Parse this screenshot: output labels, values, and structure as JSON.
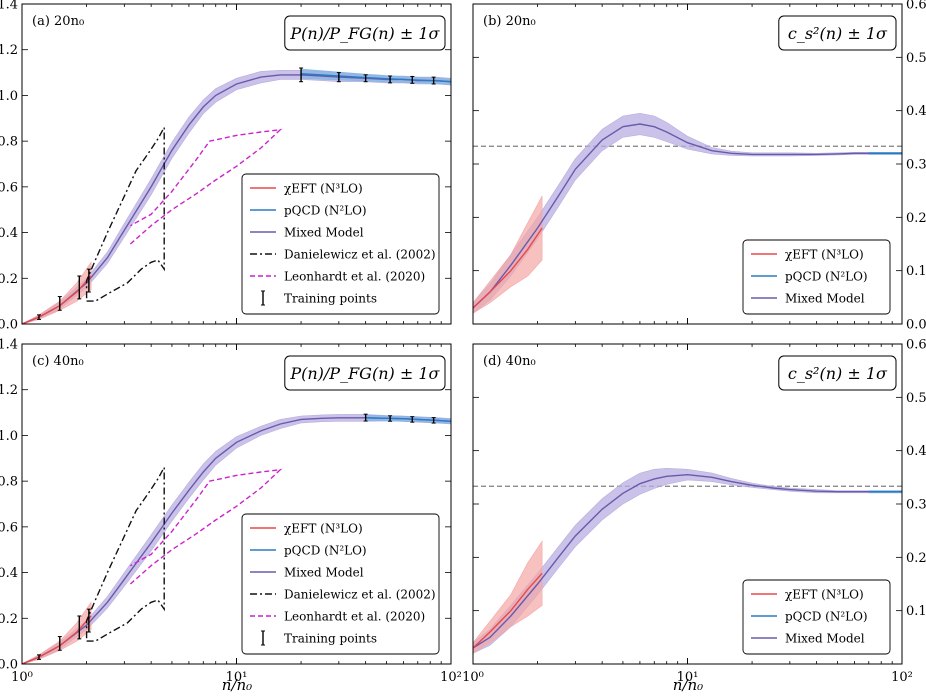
{
  "figure": {
    "xlabel": "n/n₀",
    "colors": {
      "chiEFT": "#e8484b",
      "pQCD": "#2b7bc4",
      "mixed": "#6a5aab",
      "mixed_band": "#b8aee0",
      "danielewicz": "#111111",
      "leonhardt": "#cc22cc",
      "conformal": "#7f7f7f"
    }
  },
  "chart_data": [
    {
      "id": "a",
      "type": "line",
      "panel_label": "(a) 20n₀",
      "title": "P(n)/P_FG(n) ± 1σ",
      "xscale": "log",
      "xlim": [
        1,
        100
      ],
      "ylim": [
        0,
        1.4
      ],
      "yticks": [
        0.0,
        0.2,
        0.4,
        0.6,
        0.8,
        1.0,
        1.2,
        1.4
      ],
      "ytick_labels": [
        "0.0",
        "0.2",
        "0.4",
        "0.6",
        "0.8",
        "1.0",
        "1.2",
        "1.4"
      ],
      "yaxis_side": "left",
      "legend_position": "lower-right",
      "legend": [
        "χEFT (N³LO)",
        "pQCD (N²LO)",
        "Mixed Model",
        "Danielewicz et al. (2002)",
        "Leonhardt et al. (2020)",
        "Training points"
      ],
      "series": [
        {
          "name": "Mixed Model",
          "x": [
            1.0,
            1.2,
            1.5,
            2.0,
            2.5,
            3.0,
            4.0,
            5.0,
            6.0,
            7.0,
            8.0,
            10.0,
            13.0,
            16.0,
            20.0,
            25.0,
            30.0,
            40.0,
            50.0,
            60.0,
            70.0,
            85.0,
            100.0
          ],
          "y": [
            0.0,
            0.03,
            0.08,
            0.18,
            0.29,
            0.41,
            0.6,
            0.76,
            0.87,
            0.95,
            1.0,
            1.05,
            1.08,
            1.09,
            1.09,
            1.085,
            1.08,
            1.075,
            1.07,
            1.07,
            1.065,
            1.065,
            1.06
          ],
          "band": [
            0.0,
            0.01,
            0.015,
            0.02,
            0.025,
            0.03,
            0.035,
            0.035,
            0.035,
            0.03,
            0.03,
            0.025,
            0.025,
            0.02,
            0.02,
            0.02,
            0.02,
            0.015,
            0.015,
            0.015,
            0.015,
            0.015,
            0.015
          ]
        },
        {
          "name": "χEFT (N³LO)",
          "x": [
            1.0,
            1.2,
            1.5,
            1.8,
            2.1
          ],
          "y": [
            0.0,
            0.03,
            0.08,
            0.14,
            0.21
          ],
          "band": [
            0.0,
            0.01,
            0.02,
            0.04,
            0.06
          ]
        },
        {
          "name": "pQCD (N²LO)",
          "x": [
            20.0,
            30.0,
            40.0,
            50.0,
            60.0,
            70.0,
            85.0,
            100.0
          ],
          "y": [
            1.095,
            1.085,
            1.078,
            1.073,
            1.07,
            1.067,
            1.064,
            1.06
          ],
          "band": [
            0.02,
            0.017,
            0.015,
            0.014,
            0.013,
            0.012,
            0.012,
            0.012
          ]
        },
        {
          "name": "Danielewicz et al. (2002)",
          "style": "dashdot",
          "x": [
            2.0,
            2.2,
            2.6,
            3.1,
            3.6,
            4.0,
            4.3,
            4.6,
            4.6,
            4.3,
            3.9,
            3.4,
            2.9,
            2.5,
            2.2,
            2.0,
            2.0
          ],
          "y": [
            0.1,
            0.1,
            0.14,
            0.18,
            0.24,
            0.27,
            0.28,
            0.24,
            0.86,
            0.81,
            0.75,
            0.67,
            0.53,
            0.4,
            0.28,
            0.19,
            0.1
          ]
        },
        {
          "name": "Leonhardt et al. (2020)",
          "style": "dashed",
          "x": [
            3.2,
            4.0,
            5.0,
            6.5,
            8.0,
            10.0,
            13.0,
            16.0,
            13.0,
            10.0,
            7.5,
            6.5,
            5.0,
            4.0,
            3.2
          ],
          "y": [
            0.35,
            0.43,
            0.5,
            0.57,
            0.63,
            0.69,
            0.77,
            0.85,
            0.84,
            0.825,
            0.8,
            0.72,
            0.58,
            0.48,
            0.43
          ]
        }
      ],
      "training_points": {
        "x": [
          1.2,
          1.5,
          1.85,
          2.05,
          20.0,
          30.0,
          40.0,
          52.0,
          66.0,
          83.0
        ],
        "y": [
          0.03,
          0.09,
          0.16,
          0.19,
          1.09,
          1.08,
          1.075,
          1.07,
          1.068,
          1.065
        ],
        "err": [
          0.01,
          0.03,
          0.05,
          0.05,
          0.03,
          0.02,
          0.015,
          0.015,
          0.015,
          0.015
        ]
      }
    },
    {
      "id": "b",
      "type": "line",
      "panel_label": "(b) 20n₀",
      "title": "c_s²(n) ± 1σ",
      "xscale": "log",
      "xlim": [
        1,
        100
      ],
      "ylim": [
        0,
        0.6
      ],
      "yticks": [
        0.0,
        0.1,
        0.2,
        0.3,
        0.4,
        0.5,
        0.6
      ],
      "ytick_labels": [
        "0.0",
        "0.1",
        "0.2",
        "0.3",
        "0.4",
        "0.5",
        "0.6"
      ],
      "yaxis_side": "right",
      "legend_position": "lower-right",
      "legend": [
        "χEFT (N³LO)",
        "pQCD (N²LO)",
        "Mixed Model"
      ],
      "conformal_line": 0.3333,
      "series": [
        {
          "name": "Mixed Model",
          "x": [
            1.0,
            1.2,
            1.5,
            2.0,
            2.5,
            3.0,
            4.0,
            5.0,
            6.0,
            7.0,
            8.0,
            10.0,
            13.0,
            16.0,
            20.0,
            25.0,
            30.0,
            40.0,
            50.0,
            60.0,
            70.0,
            85.0,
            100.0
          ],
          "y": [
            0.03,
            0.06,
            0.11,
            0.18,
            0.24,
            0.29,
            0.345,
            0.37,
            0.375,
            0.37,
            0.36,
            0.34,
            0.325,
            0.32,
            0.318,
            0.318,
            0.318,
            0.318,
            0.319,
            0.32,
            0.32,
            0.32,
            0.32
          ],
          "band": [
            0.01,
            0.015,
            0.02,
            0.02,
            0.02,
            0.02,
            0.02,
            0.02,
            0.02,
            0.02,
            0.018,
            0.012,
            0.006,
            0.004,
            0.003,
            0.003,
            0.003,
            0.002,
            0.002,
            0.002,
            0.002,
            0.002,
            0.002
          ]
        },
        {
          "name": "χEFT (N³LO)",
          "x": [
            1.0,
            1.2,
            1.5,
            1.8,
            2.1
          ],
          "y": [
            0.03,
            0.06,
            0.1,
            0.14,
            0.18
          ],
          "band": [
            0.01,
            0.02,
            0.03,
            0.05,
            0.06
          ]
        },
        {
          "name": "pQCD (N²LO)",
          "x": [
            70.0,
            85.0,
            100.0
          ],
          "y": [
            0.32,
            0.32,
            0.32
          ],
          "band": [
            0.002,
            0.002,
            0.002
          ]
        }
      ]
    },
    {
      "id": "c",
      "type": "line",
      "panel_label": "(c) 40n₀",
      "title": "P(n)/P_FG(n) ± 1σ",
      "xscale": "log",
      "xlim": [
        1,
        100
      ],
      "ylim": [
        0,
        1.4
      ],
      "yticks": [
        0.0,
        0.2,
        0.4,
        0.6,
        0.8,
        1.0,
        1.2,
        1.4
      ],
      "ytick_labels": [
        "0.0",
        "0.2",
        "0.4",
        "0.6",
        "0.8",
        "1.0",
        "1.2",
        "1.4"
      ],
      "xticks": [
        1,
        10,
        100
      ],
      "xtick_labels": [
        "10⁰",
        "10¹",
        "10²"
      ],
      "yaxis_side": "left",
      "legend_position": "lower-right",
      "legend": [
        "χEFT (N³LO)",
        "pQCD (N²LO)",
        "Mixed Model",
        "Danielewicz et al. (2002)",
        "Leonhardt et al. (2020)",
        "Training points"
      ],
      "series": [
        {
          "name": "Mixed Model",
          "x": [
            1.0,
            1.2,
            1.5,
            2.0,
            2.5,
            3.0,
            4.0,
            5.0,
            6.0,
            7.0,
            8.0,
            10.0,
            13.0,
            16.0,
            20.0,
            25.0,
            30.0,
            40.0,
            50.0,
            60.0,
            70.0,
            85.0,
            100.0
          ],
          "y": [
            0.0,
            0.03,
            0.08,
            0.17,
            0.27,
            0.37,
            0.53,
            0.66,
            0.76,
            0.84,
            0.9,
            0.97,
            1.02,
            1.05,
            1.07,
            1.075,
            1.077,
            1.077,
            1.075,
            1.073,
            1.07,
            1.066,
            1.062
          ],
          "band": [
            0.0,
            0.01,
            0.015,
            0.02,
            0.025,
            0.03,
            0.035,
            0.035,
            0.035,
            0.035,
            0.03,
            0.025,
            0.02,
            0.02,
            0.015,
            0.015,
            0.015,
            0.015,
            0.012,
            0.012,
            0.012,
            0.012,
            0.012
          ]
        },
        {
          "name": "χEFT (N³LO)",
          "x": [
            1.0,
            1.2,
            1.5,
            1.8,
            2.1
          ],
          "y": [
            0.0,
            0.03,
            0.08,
            0.14,
            0.21
          ],
          "band": [
            0.0,
            0.01,
            0.02,
            0.04,
            0.06
          ]
        },
        {
          "name": "pQCD (N²LO)",
          "x": [
            40.0,
            50.0,
            60.0,
            70.0,
            85.0,
            100.0
          ],
          "y": [
            1.077,
            1.075,
            1.073,
            1.07,
            1.066,
            1.062
          ],
          "band": [
            0.012,
            0.011,
            0.011,
            0.01,
            0.01,
            0.01
          ]
        },
        {
          "name": "Danielewicz et al. (2002)",
          "style": "dashdot",
          "x": [
            2.0,
            2.2,
            2.6,
            3.1,
            3.6,
            4.0,
            4.3,
            4.6,
            4.6,
            4.3,
            3.9,
            3.4,
            2.9,
            2.5,
            2.2,
            2.0,
            2.0
          ],
          "y": [
            0.1,
            0.1,
            0.14,
            0.18,
            0.24,
            0.27,
            0.28,
            0.24,
            0.86,
            0.81,
            0.75,
            0.67,
            0.53,
            0.4,
            0.28,
            0.19,
            0.1
          ]
        },
        {
          "name": "Leonhardt et al. (2020)",
          "style": "dashed",
          "x": [
            3.2,
            4.0,
            5.0,
            6.5,
            8.0,
            10.0,
            13.0,
            16.0,
            13.0,
            10.0,
            7.5,
            6.5,
            5.0,
            4.0,
            3.2
          ],
          "y": [
            0.35,
            0.43,
            0.5,
            0.57,
            0.63,
            0.69,
            0.77,
            0.85,
            0.84,
            0.825,
            0.8,
            0.72,
            0.58,
            0.48,
            0.43
          ]
        }
      ],
      "training_points": {
        "x": [
          1.2,
          1.5,
          1.85,
          2.05,
          40.0,
          52.0,
          66.0,
          83.0
        ],
        "y": [
          0.03,
          0.09,
          0.16,
          0.19,
          1.078,
          1.074,
          1.07,
          1.066
        ],
        "err": [
          0.01,
          0.03,
          0.05,
          0.05,
          0.015,
          0.012,
          0.012,
          0.012
        ]
      }
    },
    {
      "id": "d",
      "type": "line",
      "panel_label": "(d) 40n₀",
      "title": "c_s²(n) ± 1σ",
      "xscale": "log",
      "xlim": [
        1,
        100
      ],
      "ylim": [
        0,
        0.6
      ],
      "yticks": [
        0.1,
        0.2,
        0.3,
        0.4,
        0.5,
        0.6
      ],
      "ytick_labels": [
        "0.1",
        "0.2",
        "0.3",
        "0.4",
        "0.5",
        "0.6"
      ],
      "xticks": [
        1,
        10,
        100
      ],
      "xtick_labels": [
        "10⁰",
        "10¹",
        "10²"
      ],
      "yaxis_side": "right",
      "legend_position": "lower-right",
      "legend": [
        "χEFT (N³LO)",
        "pQCD (N²LO)",
        "Mixed Model"
      ],
      "conformal_line": 0.3333,
      "series": [
        {
          "name": "Mixed Model",
          "x": [
            1.0,
            1.2,
            1.5,
            2.0,
            2.5,
            3.0,
            4.0,
            5.0,
            6.0,
            7.0,
            8.0,
            10.0,
            13.0,
            16.0,
            20.0,
            25.0,
            30.0,
            40.0,
            50.0,
            60.0,
            70.0,
            85.0,
            100.0
          ],
          "y": [
            0.03,
            0.05,
            0.09,
            0.15,
            0.2,
            0.24,
            0.29,
            0.32,
            0.338,
            0.347,
            0.352,
            0.355,
            0.35,
            0.342,
            0.335,
            0.33,
            0.327,
            0.324,
            0.323,
            0.323,
            0.323,
            0.323,
            0.323
          ],
          "band": [
            0.01,
            0.015,
            0.02,
            0.02,
            0.02,
            0.02,
            0.02,
            0.02,
            0.02,
            0.018,
            0.015,
            0.01,
            0.008,
            0.006,
            0.004,
            0.003,
            0.003,
            0.003,
            0.002,
            0.002,
            0.002,
            0.002,
            0.002
          ]
        },
        {
          "name": "χEFT (N³LO)",
          "x": [
            1.0,
            1.2,
            1.5,
            1.8,
            2.1
          ],
          "y": [
            0.03,
            0.06,
            0.1,
            0.14,
            0.17
          ],
          "band": [
            0.01,
            0.02,
            0.03,
            0.05,
            0.06
          ]
        },
        {
          "name": "pQCD (N²LO)",
          "x": [
            70.0,
            85.0,
            100.0
          ],
          "y": [
            0.323,
            0.323,
            0.323
          ],
          "band": [
            0.002,
            0.002,
            0.002
          ]
        }
      ]
    }
  ]
}
